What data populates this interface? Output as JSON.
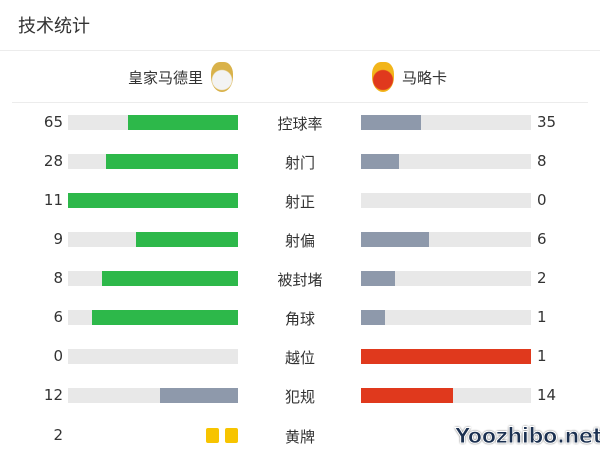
{
  "title": "技术统计",
  "home": {
    "name": "皇家马德里",
    "badge_colors": [
      "#f3f3f3",
      "#d9b24a"
    ]
  },
  "away": {
    "name": "马略卡",
    "badge_colors": [
      "#e0391d",
      "#f2b51a"
    ]
  },
  "colors": {
    "track": "#e8e8e8",
    "home_lead": "#2db84a",
    "away_lead": "#e0391d",
    "trail": "#8e99ab",
    "yellow_card": "#f7c400"
  },
  "stats": [
    {
      "label": "控球率",
      "home": 65,
      "away": 35
    },
    {
      "label": "射门",
      "home": 28,
      "away": 8
    },
    {
      "label": "射正",
      "home": 11,
      "away": 0
    },
    {
      "label": "射偏",
      "home": 9,
      "away": 6
    },
    {
      "label": "被封堵",
      "home": 8,
      "away": 2
    },
    {
      "label": "角球",
      "home": 6,
      "away": 1
    },
    {
      "label": "越位",
      "home": 0,
      "away": 1
    },
    {
      "label": "犯规",
      "home": 12,
      "away": 14
    }
  ],
  "yellow": {
    "label": "黄牌",
    "home": "2",
    "home_cards": 2
  },
  "watermark": "Yoozhibo.net"
}
